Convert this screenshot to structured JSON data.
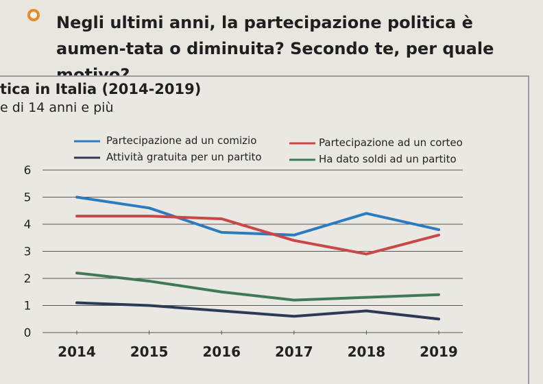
{
  "question": {
    "text": "Negli ultimi anni, la partecipazione politica è aumen-tata o diminuita? Secondo te, per quale motivo?"
  },
  "card": {
    "title": "tica in Italia (2014-2019)",
    "subtitle": "e di 14 anni e più"
  },
  "colors": {
    "accent_bullet": "#e58b2b",
    "blue": "#2a7bbf",
    "red": "#c84848",
    "green": "#3e7a55",
    "navy": "#2c3a55"
  },
  "chart_data": {
    "type": "line",
    "x": [
      2014,
      2015,
      2016,
      2017,
      2018,
      2019
    ],
    "xticklabels": [
      "2014",
      "2015",
      "2016",
      "2017",
      "2018",
      "2019"
    ],
    "yticks": [
      0,
      1,
      2,
      3,
      4,
      5,
      6
    ],
    "ylim": [
      0,
      6
    ],
    "grid": true,
    "legend_position": "top",
    "series": [
      {
        "name": "Partecipazione ad un comizio",
        "color": "#2a7bbf",
        "values": [
          5.0,
          4.6,
          3.7,
          3.6,
          4.4,
          3.8
        ]
      },
      {
        "name": "Partecipazione ad un corteo",
        "color": "#c84848",
        "values": [
          4.3,
          4.3,
          4.2,
          3.4,
          2.9,
          3.6
        ]
      },
      {
        "name": "Attività gratuita per un partito",
        "color": "#2c3a55",
        "values": [
          1.1,
          1.0,
          0.8,
          0.6,
          0.8,
          0.5
        ]
      },
      {
        "name": "Ha dato soldi ad un partito",
        "color": "#3e7a55",
        "values": [
          2.2,
          1.9,
          1.5,
          1.2,
          1.3,
          1.4
        ]
      }
    ]
  }
}
